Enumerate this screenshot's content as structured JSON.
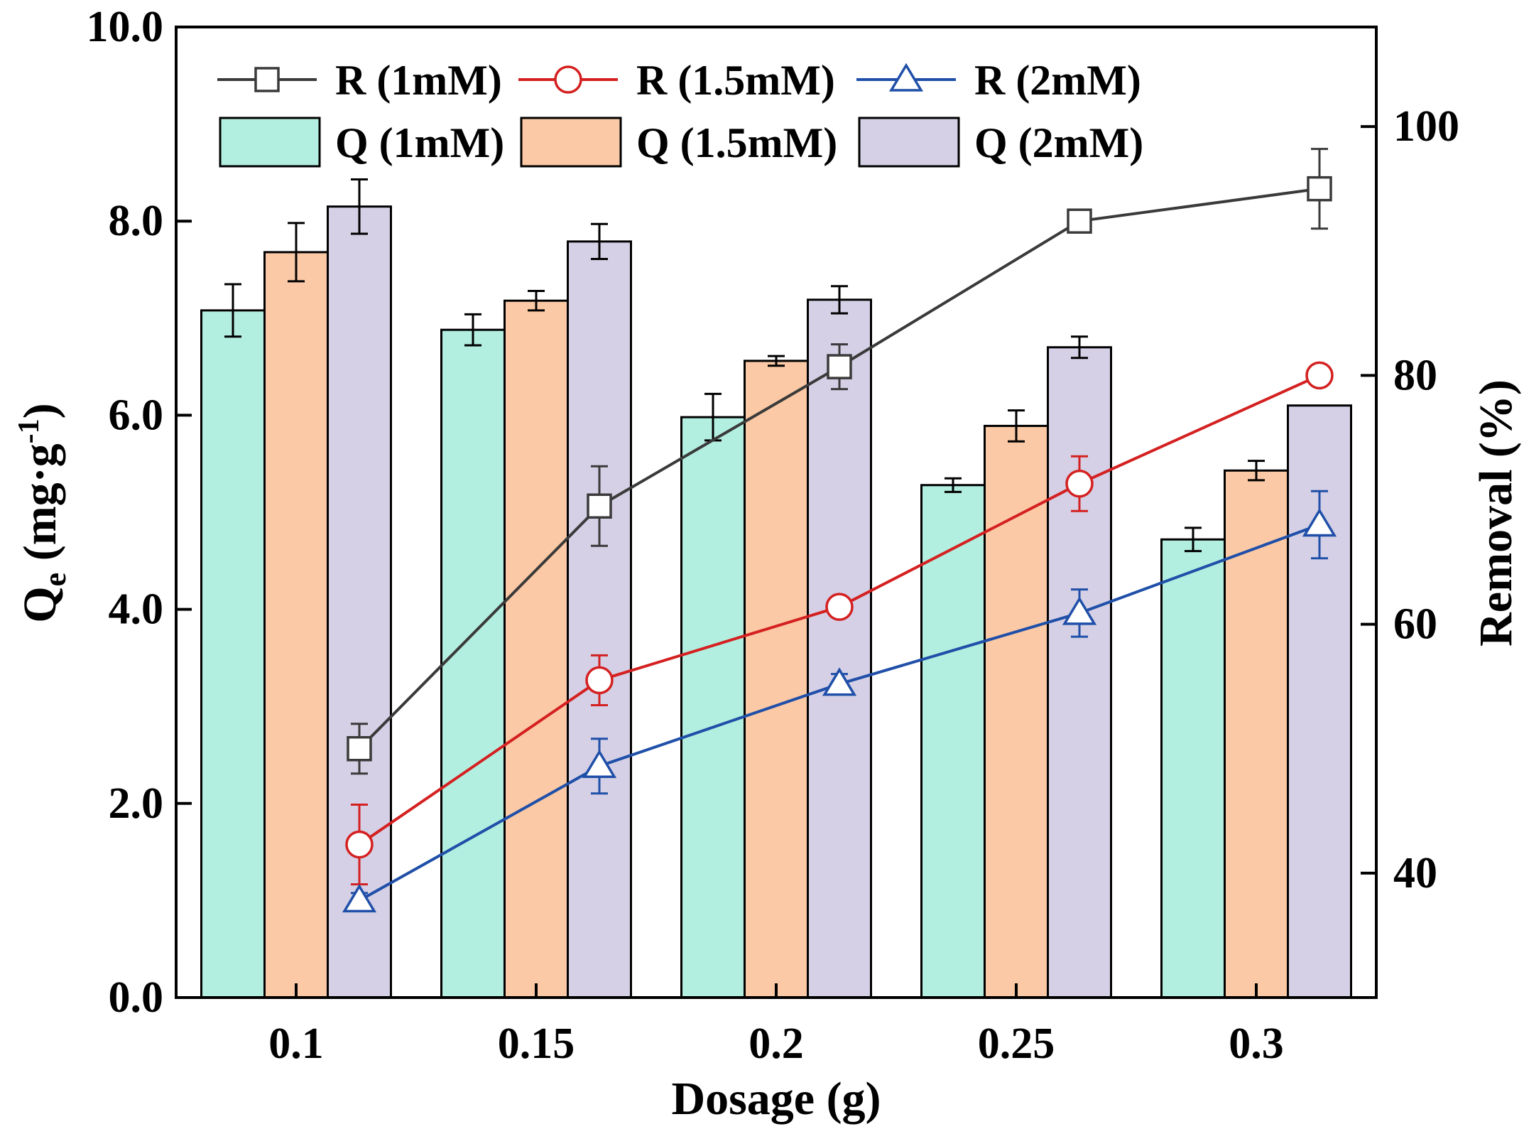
{
  "chart_data": {
    "type": "bar",
    "xlabel": "Dosage (g)",
    "ylabel": {
      "main": "Q",
      "sub": "e",
      "unit_open": " (mg·g",
      "unit_sup": "-1",
      "unit_close": ")"
    },
    "y2label": "Removal (%)",
    "categories": [
      "0.1",
      "0.15",
      "0.2",
      "0.25",
      "0.3"
    ],
    "ylim": [
      0,
      10
    ],
    "y_ticks": [
      "0.0",
      "2.0",
      "4.0",
      "6.0",
      "8.0",
      "10.0"
    ],
    "y2lim": [
      30,
      108
    ],
    "y2_ticks": [
      "40",
      "60",
      "80",
      "100"
    ],
    "grid": false,
    "legend_position": "top-left",
    "bar_series": [
      {
        "name": "Q (1mM)",
        "color": "#b3efe0",
        "values": [
          7.08,
          6.88,
          5.98,
          5.28,
          4.72
        ],
        "errors": [
          0.27,
          0.16,
          0.24,
          0.07,
          0.12
        ]
      },
      {
        "name": "Q (1.5mM)",
        "color": "#fbc9a5",
        "values": [
          7.68,
          7.18,
          6.56,
          5.89,
          5.43
        ],
        "errors": [
          0.3,
          0.1,
          0.05,
          0.16,
          0.1
        ]
      },
      {
        "name": "Q (2mM)",
        "color": "#d5d0e6",
        "values": [
          8.15,
          7.79,
          7.19,
          6.7,
          6.1
        ],
        "errors": [
          0.28,
          0.18,
          0.14,
          0.11,
          0.0
        ]
      }
    ],
    "line_series": [
      {
        "name": "R (1mM)",
        "color": "#3a3a3a",
        "marker": "square",
        "values": [
          50.0,
          69.5,
          80.7,
          92.4,
          95.0
        ],
        "errors": [
          2.0,
          3.2,
          1.8,
          0.5,
          3.2
        ]
      },
      {
        "name": "R (1.5mM)",
        "color": "#d42020",
        "marker": "circle",
        "values": [
          42.3,
          55.5,
          61.4,
          71.3,
          80.0
        ],
        "errors": [
          3.2,
          2.0,
          0.6,
          2.2,
          0.5
        ]
      },
      {
        "name": "R (2mM)",
        "color": "#1f4fa8",
        "marker": "triangle",
        "values": [
          37.8,
          48.6,
          55.2,
          60.9,
          68.0
        ],
        "errors": [
          0.6,
          2.2,
          0.8,
          1.9,
          2.7
        ]
      }
    ]
  }
}
